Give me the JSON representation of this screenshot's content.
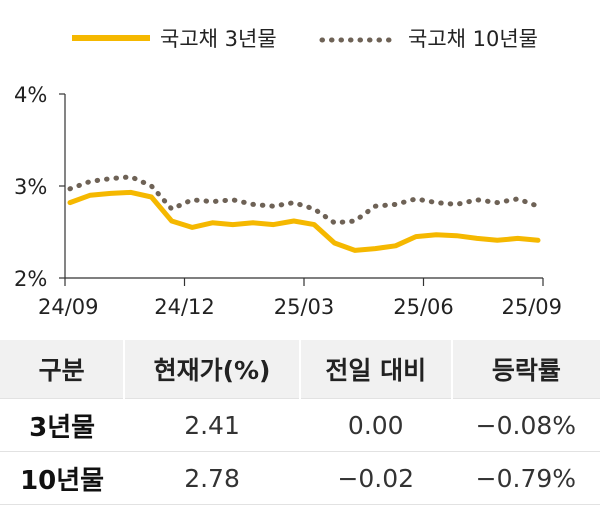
{
  "chart_data": {
    "type": "line",
    "ylim": [
      2,
      4
    ],
    "yticks": [
      "4%",
      "3%",
      "2%"
    ],
    "ytick_values": [
      4,
      3,
      2
    ],
    "xticks": [
      "24/09",
      "24/12",
      "25/03",
      "25/06",
      "25/09"
    ],
    "grid": false,
    "legend_position": "top",
    "series": [
      {
        "name": "국고채 3년물",
        "style": "solid",
        "color": "#f5b800",
        "x": [
          "24/09",
          "24/10",
          "24/10",
          "24/11",
          "24/11",
          "24/12",
          "24/12",
          "25/01",
          "25/01",
          "25/02",
          "25/02",
          "25/03",
          "25/03",
          "25/04",
          "25/04",
          "25/05",
          "25/05",
          "25/06",
          "25/06",
          "25/07",
          "25/07",
          "25/08",
          "25/08",
          "25/09"
        ],
        "values": [
          2.82,
          2.9,
          2.92,
          2.93,
          2.88,
          2.62,
          2.55,
          2.6,
          2.58,
          2.6,
          2.58,
          2.62,
          2.58,
          2.38,
          2.3,
          2.32,
          2.35,
          2.45,
          2.47,
          2.46,
          2.43,
          2.41,
          2.43,
          2.41
        ]
      },
      {
        "name": "국고채 10년물",
        "style": "dotted",
        "color": "#6e6256",
        "x": [
          "24/09",
          "24/10",
          "24/10",
          "24/11",
          "24/11",
          "24/12",
          "24/12",
          "25/01",
          "25/01",
          "25/02",
          "25/02",
          "25/03",
          "25/03",
          "25/04",
          "25/04",
          "25/05",
          "25/05",
          "25/06",
          "25/06",
          "25/07",
          "25/07",
          "25/08",
          "25/08",
          "25/09"
        ],
        "values": [
          2.97,
          3.05,
          3.08,
          3.1,
          3.0,
          2.75,
          2.85,
          2.83,
          2.85,
          2.8,
          2.78,
          2.82,
          2.75,
          2.6,
          2.62,
          2.78,
          2.8,
          2.86,
          2.82,
          2.8,
          2.85,
          2.82,
          2.86,
          2.78
        ]
      }
    ]
  },
  "table": {
    "headers": [
      "구분",
      "현재가(%)",
      "전일 대비",
      "등락률"
    ],
    "rows": [
      {
        "name": "3년물",
        "price": "2.41",
        "change": "0.00",
        "rate": "−0.08%"
      },
      {
        "name": "10년물",
        "price": "2.78",
        "change": "−0.02",
        "rate": "−0.79%"
      }
    ]
  }
}
